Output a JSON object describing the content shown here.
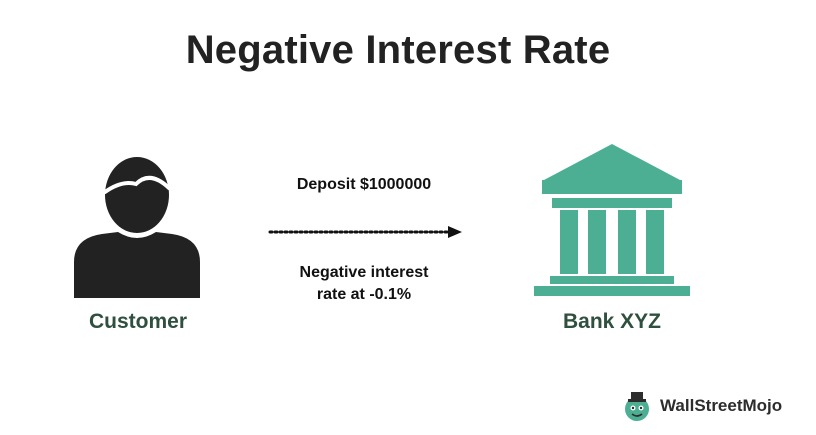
{
  "title": "Negative Interest Rate",
  "customer": {
    "label": "Customer",
    "icon": "person-icon",
    "color": "#222222"
  },
  "bank": {
    "label": "Bank XYZ",
    "icon": "bank-building-icon",
    "color": "#4caf93"
  },
  "flow": {
    "deposit_label": "Deposit $1000000",
    "rate_line1": "Negative interest",
    "rate_line2": "rate at -0.1%",
    "arrow_style": "dotted"
  },
  "brand": {
    "name": "WallStreetMojo",
    "icon": "wallstreetmojo-logo-icon",
    "accent": "#4caf93"
  }
}
